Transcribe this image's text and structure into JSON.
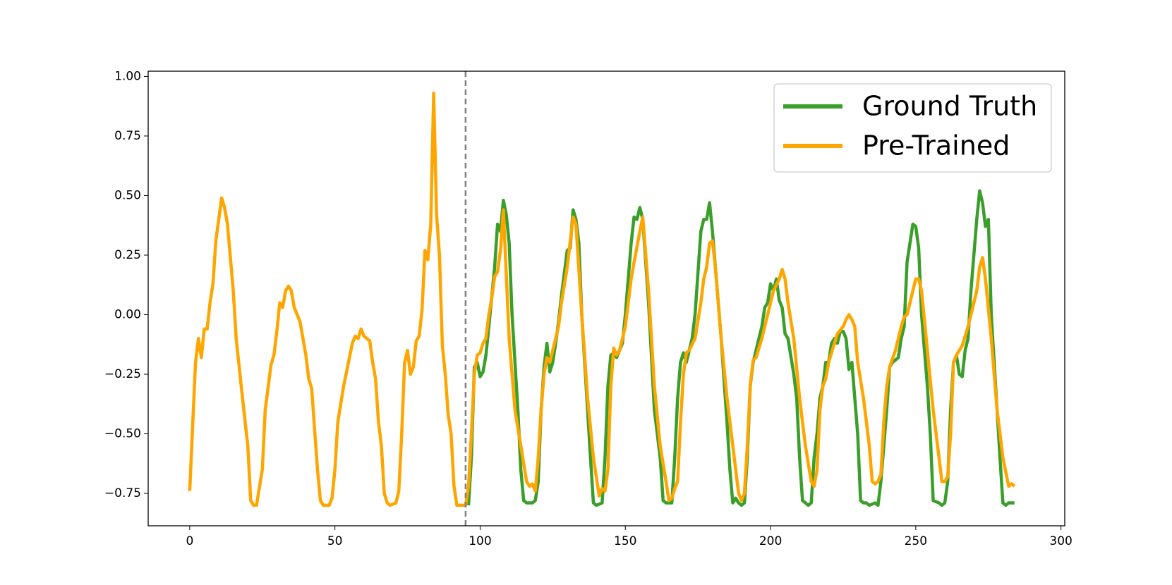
{
  "chart_data": {
    "type": "line",
    "xlim": [
      -14.3,
      301.3
    ],
    "ylim": [
      -0.886,
      1.022
    ],
    "xticks": [
      0,
      50,
      100,
      150,
      200,
      250,
      300
    ],
    "yticks": [
      {
        "value": -0.75,
        "label": "−0.75"
      },
      {
        "value": -0.5,
        "label": "−0.50"
      },
      {
        "value": -0.25,
        "label": "−0.25"
      },
      {
        "value": 0,
        "label": "0.00"
      },
      {
        "value": 0.25,
        "label": "0.25"
      },
      {
        "value": 0.5,
        "label": "0.50"
      },
      {
        "value": 0.75,
        "label": "0.75"
      },
      {
        "value": 1,
        "label": "1.00"
      }
    ],
    "split_x": 95,
    "legend": "upper right",
    "series": [
      {
        "name": "Ground Truth",
        "color": "#3a9e2a",
        "x": [
          96,
          97,
          98,
          99,
          100,
          101,
          102,
          103,
          105,
          106,
          107,
          108,
          109,
          110,
          111,
          113,
          114,
          115,
          116,
          118,
          119,
          120,
          121,
          122,
          123,
          124,
          125,
          126,
          127,
          128,
          130,
          131,
          132,
          133,
          134,
          135,
          137,
          138,
          139,
          140,
          142,
          143,
          144,
          145,
          146,
          147,
          148,
          149,
          150,
          152,
          153,
          154,
          155,
          156,
          158,
          160,
          162,
          163,
          164,
          166,
          167,
          168,
          169,
          170,
          171,
          172,
          173,
          174,
          176,
          177,
          178,
          179,
          180,
          181,
          183,
          185,
          186,
          187,
          188,
          189,
          190,
          191,
          192,
          193,
          194,
          196,
          197,
          198,
          199,
          200,
          201,
          202,
          203,
          204,
          205,
          206,
          208,
          209,
          210,
          211,
          212,
          213,
          214,
          215,
          216,
          217,
          218,
          219,
          220,
          221,
          222,
          223,
          224,
          225,
          226,
          227,
          228,
          229,
          230,
          231,
          232,
          233,
          234,
          236,
          237,
          238,
          240,
          241,
          242,
          244,
          245,
          246,
          247,
          248,
          249,
          250,
          251,
          252,
          254,
          255,
          256,
          258,
          259,
          260,
          261,
          262,
          263,
          264,
          265,
          266,
          267,
          268,
          269,
          270,
          271,
          272,
          273,
          274,
          275,
          276,
          278,
          279,
          280,
          281,
          282,
          284
        ],
        "values": [
          -0.8,
          -0.6,
          -0.22,
          -0.2,
          -0.26,
          -0.24,
          -0.17,
          -0.05,
          0.2,
          0.38,
          0.35,
          0.48,
          0.42,
          0.3,
          0.0,
          -0.4,
          -0.65,
          -0.78,
          -0.79,
          -0.79,
          -0.78,
          -0.7,
          -0.4,
          -0.22,
          -0.12,
          -0.24,
          -0.2,
          -0.12,
          -0.03,
          0.08,
          0.27,
          0.28,
          0.44,
          0.4,
          0.3,
          0.0,
          -0.4,
          -0.6,
          -0.79,
          -0.8,
          -0.79,
          -0.6,
          -0.3,
          -0.17,
          -0.16,
          -0.18,
          -0.15,
          -0.12,
          0.0,
          0.3,
          0.41,
          0.4,
          0.45,
          0.4,
          0.05,
          -0.4,
          -0.6,
          -0.78,
          -0.79,
          -0.79,
          -0.6,
          -0.35,
          -0.2,
          -0.16,
          -0.2,
          -0.15,
          -0.1,
          0.0,
          0.35,
          0.4,
          0.4,
          0.47,
          0.35,
          0.2,
          -0.1,
          -0.45,
          -0.65,
          -0.79,
          -0.77,
          -0.79,
          -0.8,
          -0.79,
          -0.6,
          -0.3,
          -0.2,
          -0.1,
          -0.05,
          0.03,
          0.05,
          0.13,
          0.1,
          0.15,
          0.06,
          0.03,
          -0.08,
          -0.1,
          -0.25,
          -0.35,
          -0.6,
          -0.78,
          -0.79,
          -0.8,
          -0.79,
          -0.6,
          -0.5,
          -0.35,
          -0.3,
          -0.2,
          -0.2,
          -0.12,
          -0.1,
          -0.12,
          -0.07,
          -0.07,
          -0.1,
          -0.23,
          -0.2,
          -0.35,
          -0.5,
          -0.78,
          -0.79,
          -0.79,
          -0.8,
          -0.79,
          -0.8,
          -0.7,
          -0.4,
          -0.22,
          -0.2,
          -0.18,
          -0.1,
          -0.05,
          0.22,
          0.3,
          0.38,
          0.37,
          0.28,
          0.0,
          -0.3,
          -0.5,
          -0.78,
          -0.79,
          -0.8,
          -0.79,
          -0.7,
          -0.4,
          -0.2,
          -0.17,
          -0.25,
          -0.26,
          -0.15,
          -0.1,
          0.1,
          0.25,
          0.4,
          0.52,
          0.47,
          0.37,
          0.4,
          0.0,
          -0.4,
          -0.6,
          -0.79,
          -0.8,
          -0.79,
          -0.79
        ]
      },
      {
        "name": "Pre-Trained",
        "color": "#ffa500",
        "x": [
          0,
          2,
          3,
          4,
          5,
          6,
          7,
          8,
          9,
          11,
          12,
          13,
          15,
          16,
          18,
          20,
          21,
          22,
          23,
          25,
          26,
          28,
          29,
          30,
          31,
          32,
          33,
          34,
          35,
          36,
          38,
          40,
          41,
          42,
          44,
          45,
          46,
          47,
          48,
          49,
          50,
          51,
          53,
          55,
          56,
          57,
          58,
          59,
          60,
          62,
          63,
          64,
          65,
          66,
          67,
          68,
          69,
          71,
          72,
          73,
          74,
          75,
          76,
          77,
          78,
          79,
          80,
          81,
          82,
          83,
          84,
          85,
          86,
          87,
          88,
          89,
          90,
          91,
          92,
          95,
          96,
          97,
          98,
          99,
          100,
          101,
          102,
          103,
          104,
          105,
          106,
          107,
          108,
          110,
          112,
          114,
          116,
          117,
          118,
          119,
          120,
          121,
          122,
          123,
          124,
          125,
          127,
          128,
          130,
          132,
          133,
          135,
          137,
          139,
          141,
          142,
          143,
          144,
          145,
          146,
          147,
          148,
          150,
          152,
          153,
          155,
          156,
          158,
          160,
          162,
          164,
          165,
          166,
          167,
          168,
          169,
          170,
          171,
          172,
          174,
          176,
          177,
          178,
          179,
          180,
          181,
          183,
          185,
          187,
          189,
          190,
          191,
          192,
          193,
          194,
          195,
          197,
          199,
          201,
          203,
          204,
          205,
          206,
          208,
          210,
          212,
          214,
          215,
          216,
          217,
          218,
          219,
          220,
          222,
          223,
          225,
          226,
          227,
          228,
          229,
          230,
          232,
          234,
          235,
          236,
          237,
          238,
          239,
          240,
          241,
          243,
          245,
          246,
          247,
          248,
          249,
          250,
          251,
          252,
          254,
          256,
          258,
          259,
          260,
          261,
          262,
          263,
          264,
          266,
          268,
          270,
          271,
          272,
          273,
          274,
          276,
          278,
          280,
          282,
          283,
          284
        ],
        "values": [
          -0.74,
          -0.2,
          -0.1,
          -0.18,
          -0.06,
          -0.06,
          0.05,
          0.13,
          0.31,
          0.49,
          0.45,
          0.38,
          0.1,
          -0.1,
          -0.33,
          -0.55,
          -0.78,
          -0.8,
          -0.8,
          -0.65,
          -0.4,
          -0.21,
          -0.17,
          -0.07,
          0.05,
          0.03,
          0.1,
          0.12,
          0.1,
          0.03,
          -0.03,
          -0.17,
          -0.27,
          -0.31,
          -0.65,
          -0.78,
          -0.8,
          -0.8,
          -0.8,
          -0.77,
          -0.65,
          -0.45,
          -0.3,
          -0.18,
          -0.12,
          -0.09,
          -0.1,
          -0.06,
          -0.09,
          -0.11,
          -0.2,
          -0.27,
          -0.45,
          -0.55,
          -0.75,
          -0.79,
          -0.8,
          -0.79,
          -0.74,
          -0.5,
          -0.2,
          -0.15,
          -0.25,
          -0.22,
          -0.11,
          -0.09,
          0.02,
          0.27,
          0.23,
          0.38,
          0.93,
          0.42,
          0.25,
          -0.13,
          -0.25,
          -0.42,
          -0.5,
          -0.72,
          -0.8,
          -0.8,
          -0.72,
          -0.5,
          -0.25,
          -0.17,
          -0.16,
          -0.12,
          -0.1,
          0.0,
          0.07,
          0.16,
          0.18,
          0.27,
          0.44,
          -0.1,
          -0.4,
          -0.55,
          -0.7,
          -0.72,
          -0.71,
          -0.74,
          -0.6,
          -0.4,
          -0.25,
          -0.18,
          -0.2,
          -0.15,
          -0.05,
          0.05,
          0.2,
          0.41,
          0.38,
          0.0,
          -0.35,
          -0.6,
          -0.76,
          -0.73,
          -0.74,
          -0.65,
          -0.3,
          -0.14,
          -0.17,
          -0.15,
          -0.05,
          0.15,
          0.22,
          0.35,
          0.41,
          0.1,
          -0.3,
          -0.55,
          -0.7,
          -0.78,
          -0.77,
          -0.73,
          -0.7,
          -0.45,
          -0.25,
          -0.16,
          -0.15,
          -0.1,
          0.05,
          0.15,
          0.2,
          0.3,
          0.31,
          0.2,
          -0.1,
          -0.35,
          -0.55,
          -0.75,
          -0.78,
          -0.75,
          -0.55,
          -0.3,
          -0.19,
          -0.18,
          -0.1,
          0.0,
          0.1,
          0.15,
          0.19,
          0.15,
          0.05,
          -0.1,
          -0.35,
          -0.55,
          -0.7,
          -0.72,
          -0.65,
          -0.4,
          -0.3,
          -0.27,
          -0.2,
          -0.12,
          -0.08,
          -0.05,
          -0.02,
          0.0,
          -0.02,
          -0.05,
          -0.2,
          -0.35,
          -0.55,
          -0.7,
          -0.71,
          -0.7,
          -0.67,
          -0.45,
          -0.3,
          -0.22,
          -0.15,
          -0.05,
          -0.01,
          0.0,
          0.05,
          0.1,
          0.15,
          0.15,
          0.1,
          -0.15,
          -0.4,
          -0.6,
          -0.7,
          -0.7,
          -0.68,
          -0.5,
          -0.2,
          -0.17,
          -0.13,
          -0.05,
          0.05,
          0.1,
          0.2,
          0.24,
          0.15,
          -0.1,
          -0.4,
          -0.6,
          -0.72,
          -0.71,
          -0.72
        ]
      }
    ]
  }
}
